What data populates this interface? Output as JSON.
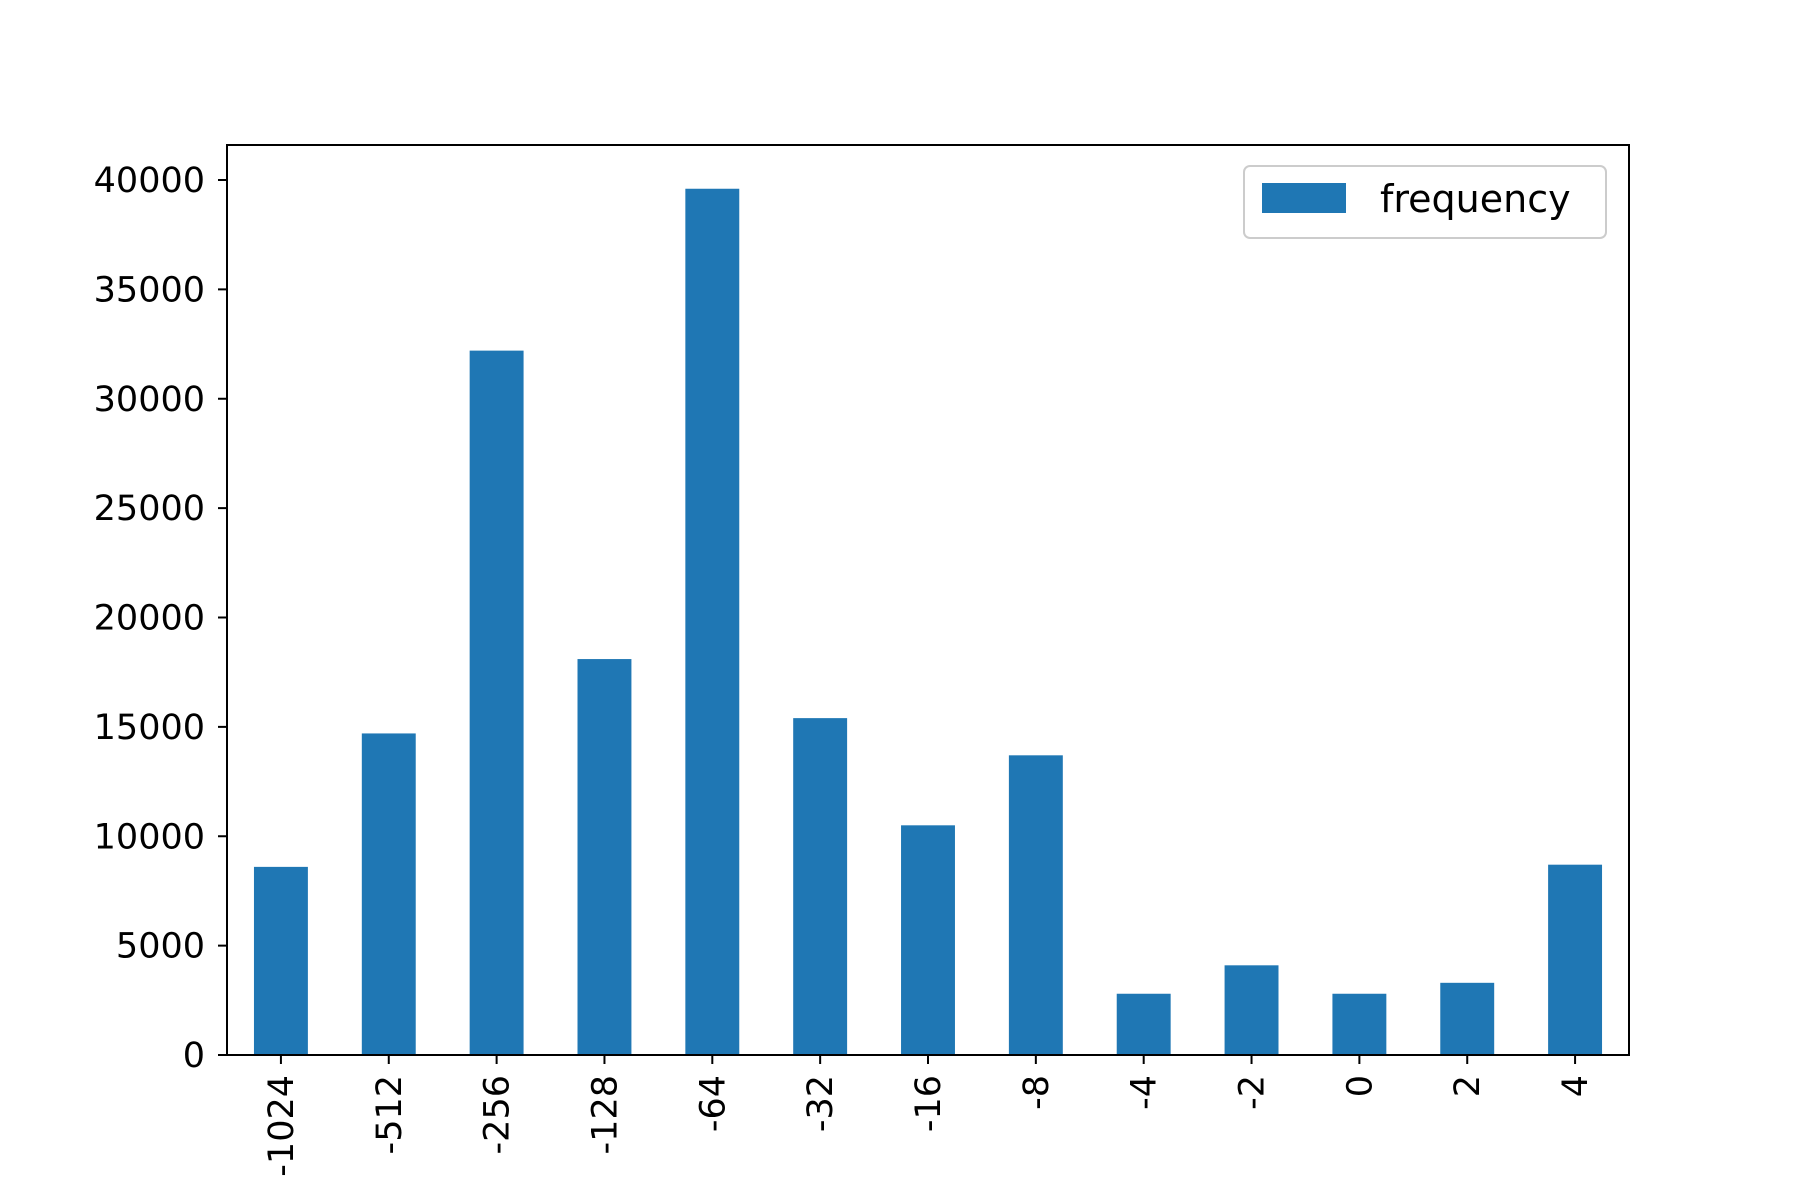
{
  "chart_data": {
    "type": "bar",
    "categories": [
      "-1024",
      "-512",
      "-256",
      "-128",
      "-64",
      "-32",
      "-16",
      "-8",
      "-4",
      "-2",
      "0",
      "2",
      "4"
    ],
    "series": [
      {
        "name": "frequency",
        "values": [
          8600,
          14700,
          32200,
          18100,
          39600,
          15400,
          10500,
          13700,
          2800,
          4100,
          2800,
          3300,
          8700
        ],
        "color": "#1f77b4"
      }
    ],
    "ylim": [
      0,
      41600
    ],
    "yticks": [
      0,
      5000,
      10000,
      15000,
      20000,
      25000,
      30000,
      35000,
      40000
    ],
    "title": "",
    "xlabel": "",
    "ylabel": "",
    "legend": "top-right",
    "grid": false
  }
}
